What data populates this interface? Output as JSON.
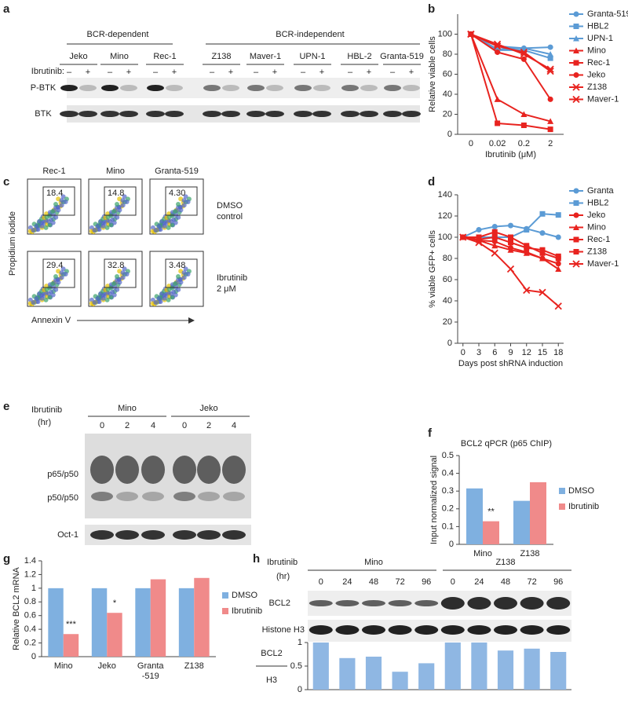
{
  "panel_labels": [
    "a",
    "b",
    "c",
    "d",
    "e",
    "f",
    "g",
    "h"
  ],
  "blot_a": {
    "groups": [
      "BCR-dependent",
      "BCR-independent"
    ],
    "treatment_label": "Ibrutinib:",
    "signs": [
      "–",
      "+"
    ],
    "cell_lines": [
      "Jeko",
      "Mino",
      "Rec-1",
      "Z138",
      "Maver-1",
      "UPN-1",
      "HBL-2",
      "Granta-519"
    ],
    "rows": [
      "P-BTK",
      "BTK"
    ]
  },
  "flow_c": {
    "columns": [
      "Rec-1",
      "Mino",
      "Granta-519"
    ],
    "row_labels": [
      [
        "DMSO",
        "control"
      ],
      [
        "Ibrutinib",
        "2 μM"
      ]
    ],
    "gates": [
      [
        "18.4",
        "14.8",
        "4.30"
      ],
      [
        "29.4",
        "32.8",
        "3.48"
      ]
    ],
    "ylabel": "Propidium iodide",
    "xlabel": "Annexin V"
  },
  "blot_e": {
    "treatment_label": [
      "Ibrutinib",
      "(hr)"
    ],
    "groups": [
      "Mino",
      "Jeko"
    ],
    "lanes": [
      "0",
      "2",
      "4",
      "0",
      "2",
      "4"
    ],
    "rows": [
      "p65/p50",
      "p50/p50",
      "Oct-1"
    ]
  },
  "blot_h": {
    "treatment_label": [
      "Ibrutinib",
      "(hr)"
    ],
    "groups": [
      "Mino",
      "Z138"
    ],
    "lanes": [
      "0",
      "24",
      "48",
      "72",
      "96",
      "0",
      "24",
      "48",
      "72",
      "96"
    ],
    "rows": [
      "BCL2",
      "Histone H3"
    ]
  },
  "chart_data": [
    {
      "type": "line",
      "xtype": "category",
      "ylabel": "Relative viable cells",
      "xlabel": "Ibrutinib (μM)",
      "categories": [
        "0",
        "0.02",
        "0.2",
        "2"
      ],
      "ylim": [
        0,
        120
      ],
      "yticks": [
        0,
        20,
        40,
        60,
        80,
        100
      ],
      "series": [
        {
          "name": "Granta-519",
          "color": "#5b9bd5",
          "marker": "circle",
          "values": [
            100,
            88,
            86,
            87
          ]
        },
        {
          "name": "HBL2",
          "color": "#5b9bd5",
          "marker": "square",
          "values": [
            100,
            84,
            84,
            76
          ]
        },
        {
          "name": "UPN-1",
          "color": "#5b9bd5",
          "marker": "triangle",
          "values": [
            100,
            85,
            86,
            80
          ]
        },
        {
          "name": "Mino",
          "color": "#e8231f",
          "marker": "triangle",
          "values": [
            100,
            35,
            20,
            13
          ]
        },
        {
          "name": "Rec-1",
          "color": "#e8231f",
          "marker": "square",
          "values": [
            100,
            11,
            9,
            5
          ]
        },
        {
          "name": "Jeko",
          "color": "#e8231f",
          "marker": "circle",
          "values": [
            100,
            82,
            75,
            35
          ]
        },
        {
          "name": "Z138",
          "color": "#e8231f",
          "marker": "x",
          "values": [
            100,
            88,
            82,
            63
          ]
        },
        {
          "name": "Maver-1",
          "color": "#e8231f",
          "marker": "x",
          "values": [
            100,
            90,
            80,
            65
          ]
        }
      ]
    },
    {
      "type": "line",
      "xtype": "numeric",
      "ylabel": "% viable GFP+ cells",
      "xlabel": "Days post shRNA induction",
      "x": [
        0,
        3,
        6,
        9,
        12,
        15,
        18
      ],
      "xlim": [
        -1,
        19
      ],
      "xticks": [
        0,
        3,
        6,
        9,
        12,
        15,
        18
      ],
      "ylim": [
        0,
        140
      ],
      "yticks": [
        0,
        20,
        40,
        60,
        80,
        100,
        120,
        140
      ],
      "series": [
        {
          "name": "Granta",
          "color": "#5b9bd5",
          "marker": "circle",
          "values": [
            100,
            107,
            110,
            111,
            108,
            104,
            100
          ]
        },
        {
          "name": "HBL2",
          "color": "#5b9bd5",
          "marker": "square",
          "values": [
            100,
            100,
            100,
            100,
            107,
            122,
            121
          ]
        },
        {
          "name": "Jeko",
          "color": "#e8231f",
          "marker": "circle",
          "values": [
            100,
            97,
            96,
            90,
            86,
            80,
            75
          ]
        },
        {
          "name": "Mino",
          "color": "#e8231f",
          "marker": "triangle",
          "values": [
            100,
            97,
            92,
            88,
            85,
            80,
            70
          ]
        },
        {
          "name": "Rec-1",
          "color": "#e8231f",
          "marker": "square",
          "values": [
            100,
            98,
            100,
            95,
            90,
            88,
            82
          ]
        },
        {
          "name": "Z138",
          "color": "#e8231f",
          "marker": "square",
          "values": [
            100,
            100,
            105,
            100,
            92,
            85,
            80
          ]
        },
        {
          "name": "Maver-1",
          "color": "#e8231f",
          "marker": "x",
          "values": [
            100,
            95,
            85,
            70,
            50,
            48,
            35
          ]
        }
      ]
    },
    {
      "type": "bar",
      "title": "BCL2 qPCR (p65 ChIP)",
      "ylabel": "Input normalized signal",
      "categories": [
        "Mino",
        "Z138"
      ],
      "ylim": [
        0,
        0.5
      ],
      "yticks": [
        0,
        0.1,
        0.2,
        0.3,
        0.4,
        0.5
      ],
      "series": [
        {
          "name": "DMSO",
          "color": "#7fb0e0",
          "values": [
            0.315,
            0.245
          ]
        },
        {
          "name": "Ibrutinib",
          "color": "#f08a8a",
          "values": [
            0.13,
            0.35
          ]
        }
      ],
      "annotations": [
        {
          "text": "**",
          "category": "Mino"
        }
      ]
    },
    {
      "type": "bar",
      "ylabel": "Relative BCL2 mRNA",
      "categories": [
        "Mino",
        "Jeko",
        "Granta -519",
        "Z138"
      ],
      "ylim": [
        0,
        1.4
      ],
      "yticks": [
        0,
        0.2,
        0.4,
        0.6,
        0.8,
        1,
        1.2,
        1.4
      ],
      "series": [
        {
          "name": "DMSO",
          "color": "#7fb0e0",
          "values": [
            1,
            1,
            1,
            1
          ]
        },
        {
          "name": "Ibrutinib",
          "color": "#f08a8a",
          "values": [
            0.33,
            0.64,
            1.13,
            1.15
          ]
        }
      ],
      "annotations": [
        {
          "text": "***",
          "category": "Mino"
        },
        {
          "text": "*",
          "category": "Jeko"
        }
      ]
    },
    {
      "type": "bar",
      "ylabel_lines": [
        "BCL2",
        "H3"
      ],
      "ylim": [
        0,
        1
      ],
      "yticks": [
        0,
        0.5,
        1
      ],
      "series": [
        {
          "color": "#8fb7e3",
          "values": [
            1,
            0.67,
            0.7,
            0.38,
            0.56,
            1,
            1,
            0.83,
            0.87,
            0.8
          ]
        }
      ]
    }
  ]
}
